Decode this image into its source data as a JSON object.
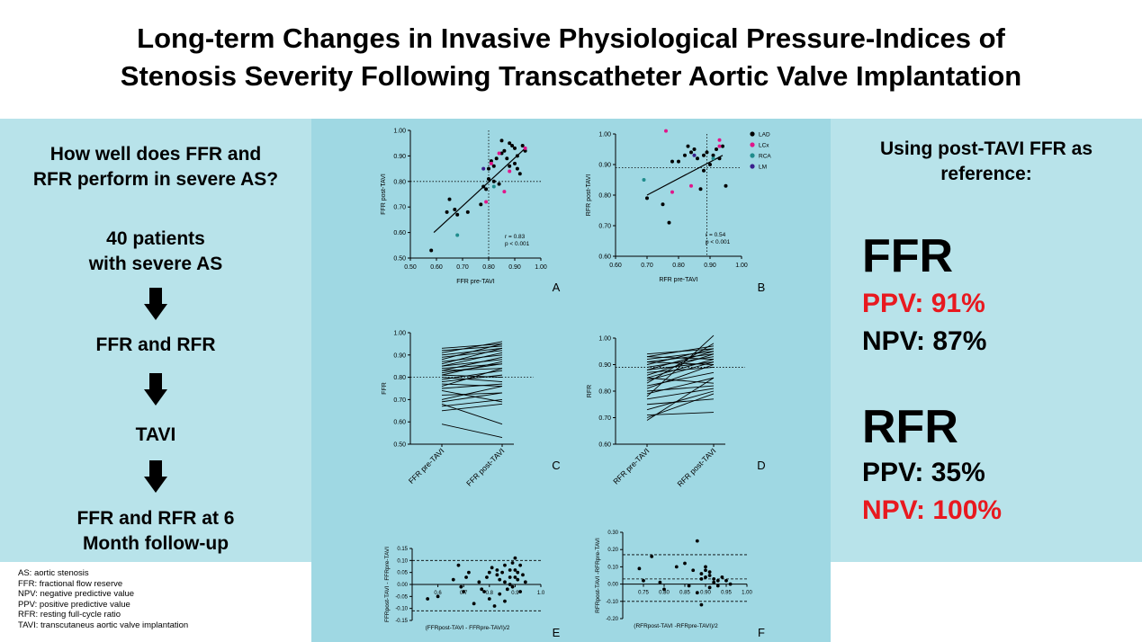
{
  "title": {
    "line1": "Long-term Changes in Invasive Physiological Pressure-Indices of",
    "line2": "Stenosis Severity Following Transcatheter Aortic Valve Implantation"
  },
  "left": {
    "question_l1": "How well does FFR and",
    "question_l2": "RFR perform in severe AS?",
    "patients_l1": "40 patients",
    "patients_l2": "with severe AS",
    "step1": "FFR and RFR",
    "step2": "TAVI",
    "step3_l1": "FFR and RFR at 6",
    "step3_l2": "Month follow-up"
  },
  "abbreviations": [
    "AS: aortic stenosis",
    "FFR: fractional flow reserve",
    "NPV: negative predictive value",
    "PPV: positive predictive value",
    "RFR: resting full-cycle ratio",
    "TAVI: transcutaneus aortic valve implantation"
  ],
  "right": {
    "heading_l1": "Using post-TAVI FFR as",
    "heading_l2": "reference:",
    "ffr_title": "FFR",
    "ffr_ppv": "PPV: 91%",
    "ffr_npv": "NPV: 87%",
    "rfr_title": "RFR",
    "rfr_ppv": "PPV: 35%",
    "rfr_npv": "NPV: 100%"
  },
  "colors": {
    "panel": "#b8e3ea",
    "center": "#9fd8e3",
    "highlight": "#e8191f",
    "LAD": "#000000",
    "LCx": "#e0168a",
    "RCA": "#1f8c8c",
    "LM": "#3a1f8c"
  },
  "chart_data": [
    {
      "id": "A",
      "type": "scatter",
      "xlabel": "FFR pre-TAVI",
      "ylabel": "FFR post-TAVI",
      "xlim": [
        0.5,
        1.0
      ],
      "ylim": [
        0.5,
        1.0
      ],
      "xticks": [
        "0.50",
        "0.60",
        "0.70",
        "0.80",
        "0.90",
        "1.00"
      ],
      "yticks": [
        "0.50",
        "0.60",
        "0.70",
        "0.80",
        "0.90",
        "1.00"
      ],
      "xcut": 0.8,
      "ycut": 0.8,
      "fit": [
        [
          0.59,
          0.6
        ],
        [
          0.94,
          0.93
        ]
      ],
      "annotation": [
        "r = 0.83",
        "p < 0.001"
      ],
      "series": [
        {
          "name": "LAD",
          "x": [
            0.58,
            0.64,
            0.65,
            0.67,
            0.68,
            0.72,
            0.77,
            0.78,
            0.79,
            0.8,
            0.8,
            0.81,
            0.82,
            0.82,
            0.83,
            0.84,
            0.85,
            0.85,
            0.86,
            0.87,
            0.88,
            0.88,
            0.89,
            0.9,
            0.9,
            0.91,
            0.91,
            0.92,
            0.93,
            0.94
          ],
          "y": [
            0.53,
            0.68,
            0.73,
            0.69,
            0.67,
            0.68,
            0.71,
            0.78,
            0.77,
            0.81,
            0.85,
            0.88,
            0.86,
            0.8,
            0.89,
            0.79,
            0.96,
            0.91,
            0.92,
            0.89,
            0.95,
            0.86,
            0.94,
            0.93,
            0.87,
            0.9,
            0.85,
            0.83,
            0.94,
            0.92
          ]
        },
        {
          "name": "LCx",
          "x": [
            0.79,
            0.81,
            0.84,
            0.86,
            0.88,
            0.94
          ],
          "y": [
            0.72,
            0.87,
            0.91,
            0.76,
            0.84,
            0.93
          ]
        },
        {
          "name": "RCA",
          "x": [
            0.68,
            0.82
          ],
          "y": [
            0.59,
            0.78
          ]
        },
        {
          "name": "LM",
          "x": [
            0.78
          ],
          "y": [
            0.85
          ]
        }
      ]
    },
    {
      "id": "B",
      "type": "scatter",
      "xlabel": "RFR pre-TAVI",
      "ylabel": "RFR post-TAVI",
      "xlim": [
        0.6,
        1.0
      ],
      "ylim": [
        0.6,
        1.0
      ],
      "xticks": [
        "0.60",
        "0.70",
        "0.80",
        "0.90",
        "1.00"
      ],
      "yticks": [
        "0.60",
        "0.70",
        "0.80",
        "0.90",
        "1.00"
      ],
      "xcut": 0.89,
      "ycut": 0.89,
      "fit": [
        [
          0.7,
          0.8
        ],
        [
          0.94,
          0.93
        ]
      ],
      "annotation": [
        "r = 0.54",
        "p < 0.001"
      ],
      "legend": [
        "LAD",
        "LCx",
        "RCA",
        "LM"
      ],
      "series": [
        {
          "name": "LAD",
          "x": [
            0.7,
            0.75,
            0.77,
            0.78,
            0.8,
            0.82,
            0.83,
            0.84,
            0.85,
            0.86,
            0.87,
            0.88,
            0.88,
            0.89,
            0.9,
            0.91,
            0.92,
            0.93,
            0.94,
            0.95
          ],
          "y": [
            0.79,
            0.77,
            0.71,
            0.91,
            0.91,
            0.93,
            0.96,
            0.94,
            0.95,
            0.92,
            0.82,
            0.88,
            0.93,
            0.94,
            0.9,
            0.93,
            0.95,
            0.92,
            0.96,
            0.83
          ]
        },
        {
          "name": "LCx",
          "x": [
            0.76,
            0.78,
            0.84,
            0.93,
            0.93
          ],
          "y": [
            1.01,
            0.81,
            0.83,
            0.98,
            0.96
          ]
        },
        {
          "name": "RCA",
          "x": [
            0.69,
            0.91
          ],
          "y": [
            0.85,
            0.92
          ]
        },
        {
          "name": "LM",
          "x": [
            0.85
          ],
          "y": [
            0.93
          ]
        }
      ]
    },
    {
      "id": "C",
      "type": "line",
      "ylabel": "FFR",
      "categories": [
        "FFR pre-TAVI",
        "FFR post-TAVI"
      ],
      "ylim": [
        0.5,
        1.0
      ],
      "yticks": [
        "0.50",
        "0.60",
        "0.70",
        "0.80",
        "0.90",
        "1.00"
      ],
      "ref": 0.8,
      "pairs": [
        [
          0.93,
          0.95
        ],
        [
          0.92,
          0.94
        ],
        [
          0.91,
          0.96
        ],
        [
          0.9,
          0.93
        ],
        [
          0.89,
          0.92
        ],
        [
          0.88,
          0.95
        ],
        [
          0.87,
          0.9
        ],
        [
          0.86,
          0.93
        ],
        [
          0.85,
          0.88
        ],
        [
          0.85,
          0.91
        ],
        [
          0.84,
          0.86
        ],
        [
          0.83,
          0.89
        ],
        [
          0.83,
          0.84
        ],
        [
          0.82,
          0.86
        ],
        [
          0.81,
          0.8
        ],
        [
          0.81,
          0.87
        ],
        [
          0.8,
          0.78
        ],
        [
          0.79,
          0.83
        ],
        [
          0.78,
          0.81
        ],
        [
          0.77,
          0.76
        ],
        [
          0.76,
          0.84
        ],
        [
          0.75,
          0.77
        ],
        [
          0.74,
          0.69
        ],
        [
          0.72,
          0.73
        ],
        [
          0.7,
          0.76
        ],
        [
          0.69,
          0.73
        ],
        [
          0.68,
          0.59
        ],
        [
          0.67,
          0.7
        ],
        [
          0.65,
          0.68
        ],
        [
          0.59,
          0.53
        ]
      ]
    },
    {
      "id": "D",
      "type": "line",
      "ylabel": "RFR",
      "categories": [
        "RFR pre-TAVI",
        "RFR post-TAVI"
      ],
      "ylim": [
        0.6,
        1.0
      ],
      "yticks": [
        "0.60",
        "0.70",
        "0.80",
        "0.90",
        "1.00"
      ],
      "ref": 0.89,
      "pairs": [
        [
          0.94,
          0.96
        ],
        [
          0.93,
          0.97
        ],
        [
          0.93,
          0.92
        ],
        [
          0.92,
          0.95
        ],
        [
          0.91,
          0.94
        ],
        [
          0.91,
          0.9
        ],
        [
          0.9,
          0.96
        ],
        [
          0.89,
          0.93
        ],
        [
          0.88,
          0.91
        ],
        [
          0.88,
          0.95
        ],
        [
          0.87,
          0.89
        ],
        [
          0.86,
          0.94
        ],
        [
          0.85,
          0.92
        ],
        [
          0.85,
          0.83
        ],
        [
          0.84,
          0.91
        ],
        [
          0.83,
          0.98
        ],
        [
          0.82,
          0.87
        ],
        [
          0.81,
          0.9
        ],
        [
          0.8,
          0.82
        ],
        [
          0.79,
          0.85
        ],
        [
          0.78,
          1.01
        ],
        [
          0.77,
          0.81
        ],
        [
          0.75,
          0.77
        ],
        [
          0.73,
          0.8
        ],
        [
          0.71,
          0.72
        ],
        [
          0.7,
          0.79
        ],
        [
          0.69,
          0.85
        ]
      ]
    },
    {
      "id": "E",
      "type": "scatter",
      "xlabel": "(FFRpost-TAVI - FFRpre-TAVI)/2",
      "ylabel": "FFRpost-TAVI - FFRpre-TAVI",
      "xlim": [
        0.5,
        1.0
      ],
      "ylim": [
        -0.15,
        0.15
      ],
      "xticks": [
        "0.6",
        "0.7",
        "0.8",
        "0.9",
        "1.0"
      ],
      "yticks": [
        "0.15",
        "0.10",
        "0.05",
        "0.00",
        "-0.05",
        "-0.10",
        "-0.15"
      ],
      "mean": 0.0,
      "upper": 0.1,
      "lower": -0.11,
      "x": [
        0.56,
        0.6,
        0.66,
        0.68,
        0.7,
        0.71,
        0.74,
        0.76,
        0.77,
        0.78,
        0.79,
        0.8,
        0.81,
        0.82,
        0.83,
        0.84,
        0.84,
        0.85,
        0.86,
        0.86,
        0.87,
        0.88,
        0.88,
        0.89,
        0.89,
        0.9,
        0.9,
        0.91,
        0.91,
        0.92,
        0.92,
        0.93,
        0.94,
        0.69,
        0.72,
        0.8,
        0.83,
        0.86,
        0.88,
        0.9
      ],
      "y": [
        -0.06,
        -0.05,
        0.02,
        0.08,
        -0.03,
        0.03,
        -0.08,
        0.01,
        -0.02,
        -0.03,
        0.03,
        0.05,
        0.07,
        -0.09,
        0.06,
        0.02,
        -0.04,
        0.05,
        0.08,
        0.01,
        -0.02,
        0.06,
        0.03,
        0.09,
        -0.01,
        0.06,
        0.11,
        0.02,
        0.05,
        -0.03,
        0.08,
        0.04,
        0.01,
        -0.01,
        0.05,
        -0.06,
        0.04,
        -0.07,
        0.0,
        0.03
      ]
    },
    {
      "id": "F",
      "type": "scatter",
      "xlabel": "(RFRpost-TAVI -RFRpre-TAVI)/2",
      "ylabel": "RFRpost-TAVI -RFRpre-TAVI",
      "xlim": [
        0.7,
        1.0
      ],
      "ylim": [
        -0.2,
        0.3
      ],
      "xticks": [
        "0.75",
        "0.80",
        "0.85",
        "0.90",
        "0.95",
        "1.00"
      ],
      "yticks": [
        "0.30",
        "0.20",
        "0.10",
        "0.00",
        "-0.10",
        "-0.20"
      ],
      "mean": 0.03,
      "upper": 0.17,
      "lower": -0.1,
      "x": [
        0.74,
        0.75,
        0.77,
        0.79,
        0.8,
        0.83,
        0.85,
        0.86,
        0.87,
        0.88,
        0.89,
        0.89,
        0.9,
        0.9,
        0.91,
        0.91,
        0.92,
        0.92,
        0.93,
        0.93,
        0.94,
        0.95,
        0.96,
        0.88,
        0.9,
        0.91,
        0.89
      ],
      "y": [
        0.09,
        0.02,
        0.16,
        0.01,
        -0.03,
        0.1,
        0.12,
        -0.01,
        0.08,
        0.25,
        0.06,
        0.03,
        0.1,
        0.04,
        0.07,
        -0.02,
        0.03,
        0.01,
        0.02,
        -0.01,
        0.04,
        0.02,
        0.0,
        -0.05,
        0.08,
        0.05,
        -0.12
      ]
    }
  ]
}
